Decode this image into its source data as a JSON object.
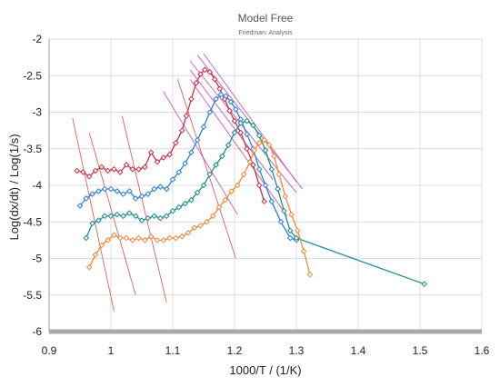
{
  "chart_data": {
    "type": "scatter",
    "title": "Model Free",
    "subtitle": "Friedman: Analysis",
    "xlabel": "1000/T / (1/K)",
    "ylabel": "Log(dx/dt) / Log(1/s)",
    "xlim": [
      0.9,
      1.6
    ],
    "ylim": [
      -6,
      -2
    ],
    "xticks": [
      0.9,
      1.0,
      1.1,
      1.2,
      1.3,
      1.4,
      1.5,
      1.6
    ],
    "yticks": [
      -6,
      -5.5,
      -5,
      -4.5,
      -4,
      -3.5,
      -3,
      -2.5,
      -2
    ],
    "xtick_labels": [
      "0.9",
      "1",
      "1.1",
      "1.2",
      "1.3",
      "1.4",
      "1.5",
      "1.6"
    ],
    "ytick_labels": [
      "-6",
      "-5.5",
      "-5",
      "-4.5",
      "-4",
      "-3.5",
      "-3",
      "-2.5",
      "-2"
    ],
    "grid": true,
    "series": [
      {
        "color": "#c8324a",
        "marker": "diamond",
        "points": [
          [
            0.945,
            -3.8
          ],
          [
            0.955,
            -3.82
          ],
          [
            0.965,
            -3.88
          ],
          [
            0.975,
            -3.8
          ],
          [
            0.985,
            -3.75
          ],
          [
            0.995,
            -3.8
          ],
          [
            1.005,
            -3.78
          ],
          [
            1.015,
            -3.82
          ],
          [
            1.025,
            -3.72
          ],
          [
            1.035,
            -3.78
          ],
          [
            1.045,
            -3.78
          ],
          [
            1.055,
            -3.75
          ],
          [
            1.065,
            -3.55
          ],
          [
            1.075,
            -3.68
          ],
          [
            1.085,
            -3.62
          ],
          [
            1.095,
            -3.58
          ],
          [
            1.105,
            -3.42
          ],
          [
            1.115,
            -3.25
          ],
          [
            1.122,
            -3.05
          ],
          [
            1.13,
            -2.82
          ],
          [
            1.138,
            -2.6
          ],
          [
            1.145,
            -2.48
          ],
          [
            1.152,
            -2.42
          ],
          [
            1.16,
            -2.45
          ],
          [
            1.168,
            -2.55
          ],
          [
            1.176,
            -2.68
          ],
          [
            1.184,
            -2.82
          ],
          [
            1.192,
            -2.98
          ],
          [
            1.2,
            -3.12
          ],
          [
            1.21,
            -3.28
          ],
          [
            1.22,
            -3.5
          ],
          [
            1.23,
            -3.72
          ],
          [
            1.24,
            -4.0
          ],
          [
            1.248,
            -4.22
          ]
        ]
      },
      {
        "color": "#2f7fe0",
        "marker": "diamond",
        "points": [
          [
            0.95,
            -4.28
          ],
          [
            0.96,
            -4.18
          ],
          [
            0.97,
            -4.12
          ],
          [
            0.98,
            -4.08
          ],
          [
            0.99,
            -4.05
          ],
          [
            1.0,
            -4.05
          ],
          [
            1.01,
            -4.08
          ],
          [
            1.02,
            -4.12
          ],
          [
            1.03,
            -4.08
          ],
          [
            1.04,
            -4.18
          ],
          [
            1.05,
            -4.15
          ],
          [
            1.06,
            -4.12
          ],
          [
            1.07,
            -4.05
          ],
          [
            1.08,
            -4.02
          ],
          [
            1.09,
            -4.05
          ],
          [
            1.1,
            -3.92
          ],
          [
            1.11,
            -3.82
          ],
          [
            1.12,
            -3.7
          ],
          [
            1.13,
            -3.55
          ],
          [
            1.14,
            -3.38
          ],
          [
            1.15,
            -3.2
          ],
          [
            1.16,
            -3.0
          ],
          [
            1.17,
            -2.82
          ],
          [
            1.178,
            -2.76
          ],
          [
            1.186,
            -2.78
          ],
          [
            1.194,
            -2.86
          ],
          [
            1.202,
            -2.96
          ],
          [
            1.21,
            -3.1
          ],
          [
            1.22,
            -3.3
          ],
          [
            1.23,
            -3.5
          ],
          [
            1.24,
            -3.78
          ],
          [
            1.25,
            -4.0
          ],
          [
            1.26,
            -4.22
          ],
          [
            1.275,
            -4.5
          ],
          [
            1.29,
            -4.72
          ],
          [
            1.3,
            -4.75
          ]
        ]
      },
      {
        "color": "#1e8e8e",
        "marker": "diamond",
        "points": [
          [
            0.96,
            -4.72
          ],
          [
            0.97,
            -4.52
          ],
          [
            0.98,
            -4.48
          ],
          [
            0.99,
            -4.42
          ],
          [
            1.0,
            -4.42
          ],
          [
            1.01,
            -4.4
          ],
          [
            1.02,
            -4.42
          ],
          [
            1.03,
            -4.38
          ],
          [
            1.04,
            -4.42
          ],
          [
            1.05,
            -4.48
          ],
          [
            1.06,
            -4.45
          ],
          [
            1.07,
            -4.42
          ],
          [
            1.08,
            -4.45
          ],
          [
            1.09,
            -4.42
          ],
          [
            1.1,
            -4.35
          ],
          [
            1.11,
            -4.3
          ],
          [
            1.12,
            -4.25
          ],
          [
            1.13,
            -4.2
          ],
          [
            1.14,
            -4.1
          ],
          [
            1.15,
            -4.0
          ],
          [
            1.16,
            -3.85
          ],
          [
            1.17,
            -3.72
          ],
          [
            1.18,
            -3.6
          ],
          [
            1.19,
            -3.45
          ],
          [
            1.2,
            -3.28
          ],
          [
            1.21,
            -3.15
          ],
          [
            1.22,
            -3.12
          ],
          [
            1.23,
            -3.18
          ],
          [
            1.24,
            -3.32
          ],
          [
            1.25,
            -3.52
          ],
          [
            1.26,
            -3.78
          ],
          [
            1.27,
            -4.05
          ],
          [
            1.28,
            -4.35
          ],
          [
            1.29,
            -4.62
          ],
          [
            1.3,
            -4.72
          ],
          [
            1.507,
            -5.35
          ]
        ]
      },
      {
        "color": "#f08a3c",
        "marker": "diamond",
        "points": [
          [
            0.965,
            -5.12
          ],
          [
            0.975,
            -4.95
          ],
          [
            0.985,
            -4.82
          ],
          [
            0.995,
            -4.75
          ],
          [
            1.005,
            -4.68
          ],
          [
            1.015,
            -4.72
          ],
          [
            1.025,
            -4.72
          ],
          [
            1.035,
            -4.75
          ],
          [
            1.045,
            -4.72
          ],
          [
            1.055,
            -4.75
          ],
          [
            1.065,
            -4.7
          ],
          [
            1.075,
            -4.75
          ],
          [
            1.085,
            -4.75
          ],
          [
            1.095,
            -4.72
          ],
          [
            1.105,
            -4.72
          ],
          [
            1.115,
            -4.7
          ],
          [
            1.125,
            -4.65
          ],
          [
            1.135,
            -4.58
          ],
          [
            1.145,
            -4.55
          ],
          [
            1.155,
            -4.5
          ],
          [
            1.165,
            -4.42
          ],
          [
            1.175,
            -4.3
          ],
          [
            1.185,
            -4.2
          ],
          [
            1.195,
            -4.08
          ],
          [
            1.205,
            -4.0
          ],
          [
            1.215,
            -3.85
          ],
          [
            1.225,
            -3.68
          ],
          [
            1.232,
            -3.52
          ],
          [
            1.24,
            -3.42
          ],
          [
            1.248,
            -3.38
          ],
          [
            1.256,
            -3.45
          ],
          [
            1.264,
            -3.6
          ],
          [
            1.272,
            -3.85
          ],
          [
            1.282,
            -4.15
          ],
          [
            1.292,
            -4.4
          ],
          [
            1.302,
            -4.62
          ],
          [
            1.312,
            -4.9
          ],
          [
            1.322,
            -5.22
          ]
        ]
      }
    ],
    "fit_lines": [
      {
        "color": "#d44a3a",
        "x": [
          0.938,
          1.005
        ],
        "y": [
          -3.08,
          -5.72
        ]
      },
      {
        "color": "#d44a3a",
        "x": [
          0.965,
          1.04
        ],
        "y": [
          -3.28,
          -5.5
        ]
      },
      {
        "color": "#d44a3a",
        "x": [
          1.018,
          1.09
        ],
        "y": [
          -3.05,
          -5.6
        ]
      },
      {
        "color": "#d44a3a",
        "x": [
          1.108,
          1.202
        ],
        "y": [
          -2.55,
          -5.0
        ]
      },
      {
        "color": "#c040b0",
        "x": [
          1.085,
          1.205
        ],
        "y": [
          -2.72,
          -4.4
        ]
      },
      {
        "color": "#c040b0",
        "x": [
          1.128,
          1.285
        ],
        "y": [
          -2.55,
          -4.42
        ]
      },
      {
        "color": "#c040b0",
        "x": [
          1.128,
          1.262
        ],
        "y": [
          -2.42,
          -3.92
        ]
      },
      {
        "color": "#c040b0",
        "x": [
          1.128,
          1.3
        ],
        "y": [
          -2.3,
          -4.1
        ]
      },
      {
        "color": "#c040b0",
        "x": [
          1.14,
          1.31
        ],
        "y": [
          -2.22,
          -4.05
        ]
      },
      {
        "color": "#c040b0",
        "x": [
          1.15,
          1.3
        ],
        "y": [
          -2.2,
          -3.95
        ]
      }
    ]
  }
}
